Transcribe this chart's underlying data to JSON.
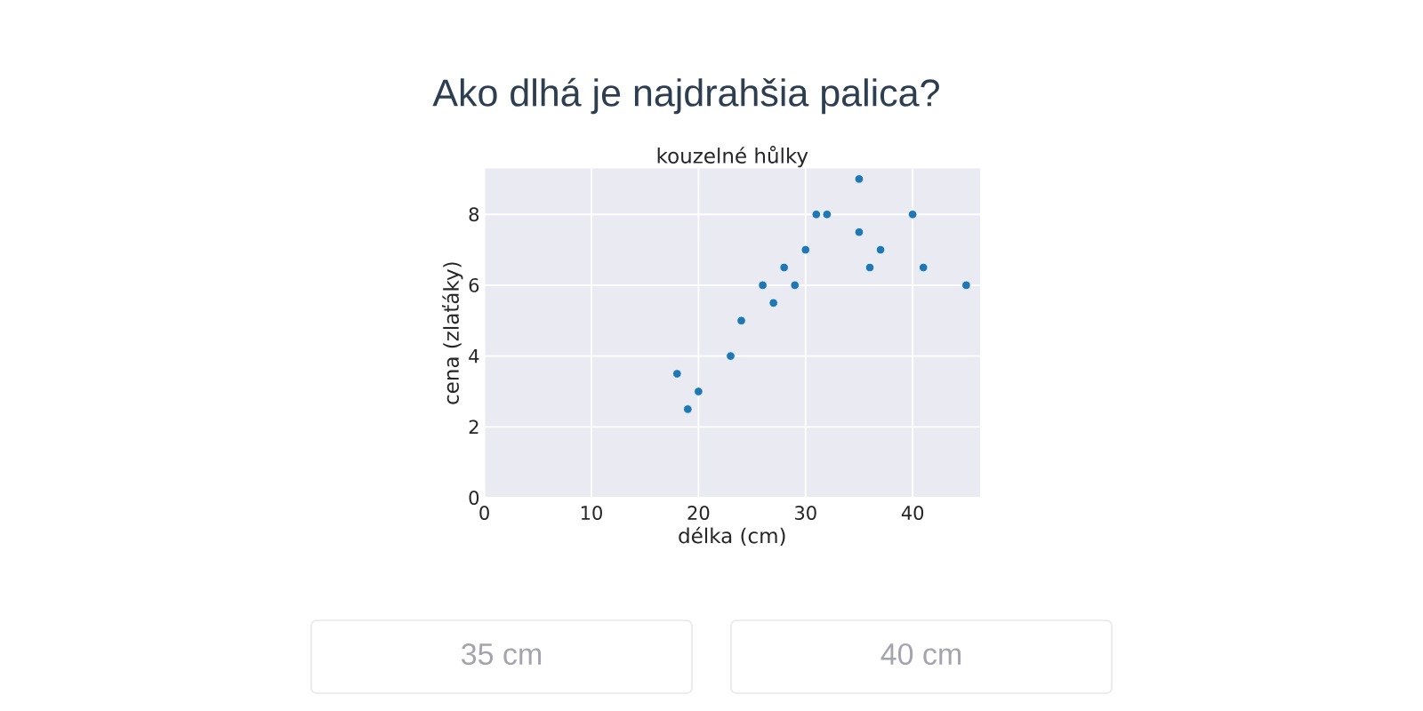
{
  "chart_data": {
    "type": "scatter",
    "title": "Ako dlhá je najdrahšia palica?",
    "subtitle": "kouzelné hůlky",
    "xlabel": "délka (cm)",
    "ylabel": "cena (zlaťáky)",
    "annotations": [
      "35 cm",
      "40 cm"
    ],
    "x": [
      18,
      19,
      20,
      23,
      24,
      26,
      27,
      28,
      29,
      30,
      31,
      32,
      35,
      35,
      36,
      37,
      40,
      41,
      45
    ],
    "series": [
      {
        "color": "#1f77b4",
        "values": [
          3.5,
          2.5,
          3,
          4,
          5,
          6,
          5.5,
          6.5,
          6,
          7,
          8,
          8,
          9,
          7.5,
          6.5,
          7,
          8,
          6.5,
          6
        ]
      }
    ],
    "xlim": [
      0,
      46.3
    ],
    "ylim": [
      0,
      9.3
    ],
    "xticks": [
      0,
      10,
      20,
      30,
      40
    ],
    "yticks": [
      0,
      2,
      4,
      6,
      8
    ],
    "grid": true,
    "marker": "circle"
  }
}
